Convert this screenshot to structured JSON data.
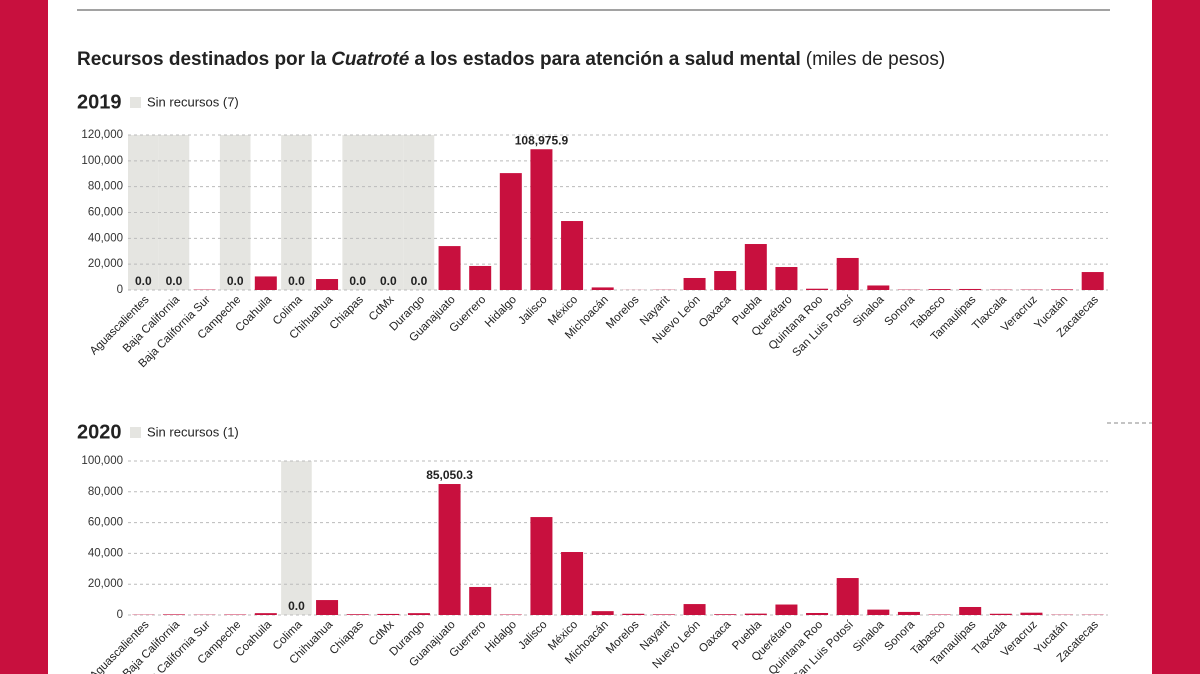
{
  "title": {
    "lead": "Recursos destinados por la",
    "emphasis": "Cuatroté",
    "tail": "a los estados para atención a salud mental",
    "unit": "(miles de pesos)"
  },
  "chart_data": [
    {
      "type": "bar",
      "title": "2019",
      "legend": "Sin recursos (7)",
      "categories": [
        "Aguascalientes",
        "Baja California",
        "Baja California Sur",
        "Campeche",
        "Coahuila",
        "Colima",
        "Chihuahua",
        "Chiapas",
        "CdMx",
        "Durango",
        "Guanajuato",
        "Guerrero",
        "Hidalgo",
        "Jalisco",
        "México",
        "Michoacán",
        "Morelos",
        "Nayarit",
        "Nuevo León",
        "Oaxaca",
        "Puebla",
        "Querétaro",
        "Quintana Roo",
        "San Luis Potosí",
        "Sinaloa",
        "Sonora",
        "Tabasco",
        "Tamaulipas",
        "Tlaxcala",
        "Veracruz",
        "Yucatán",
        "Zacatecas"
      ],
      "values": [
        0,
        0,
        300,
        0,
        10500,
        0,
        8500,
        0,
        0,
        0,
        34000,
        18600,
        90500,
        108975.9,
        53400,
        2000,
        100,
        200,
        9300,
        14700,
        35600,
        17800,
        1000,
        24800,
        3500,
        300,
        700,
        800,
        300,
        300,
        500,
        13900
      ],
      "value_labels": [
        "0.0",
        "0.0",
        null,
        "0.0",
        null,
        "0.0",
        null,
        "0.0",
        "0.0",
        "0.0",
        null,
        null,
        null,
        "108,975.9",
        null,
        null,
        null,
        null,
        null,
        null,
        null,
        null,
        null,
        null,
        null,
        null,
        null,
        null,
        null,
        null,
        null,
        null
      ],
      "no_resources": [
        true,
        true,
        false,
        true,
        false,
        true,
        false,
        true,
        true,
        true,
        false,
        false,
        false,
        false,
        false,
        false,
        false,
        false,
        false,
        false,
        false,
        false,
        false,
        false,
        false,
        false,
        false,
        false,
        false,
        false,
        false,
        false
      ],
      "color": "#c8103e",
      "shade_color": "#e5e5e1",
      "ylim": [
        0,
        120000
      ],
      "yticks": [
        0,
        {
          "value": 20000,
          "label": "20,000"
        },
        {
          "value": 40000,
          "label": "40,000"
        },
        {
          "value": 60000,
          "label": "60,000"
        },
        {
          "value": 80000,
          "label": "80,000"
        },
        {
          "value": 100000,
          "label": "100,000"
        },
        {
          "value": 120000,
          "label": "120,000"
        }
      ],
      "grid": true
    },
    {
      "type": "bar",
      "title": "2020",
      "legend": "Sin recursos (1)",
      "categories": [
        "Aguascalientes",
        "Baja California",
        "Baja California Sur",
        "Campeche",
        "Coahuila",
        "Colima",
        "Chihuahua",
        "Chiapas",
        "CdMx",
        "Durango",
        "Guanajuato",
        "Guerrero",
        "Hidalgo",
        "Jalisco",
        "México",
        "Michoacán",
        "Morelos",
        "Nayarit",
        "Nuevo León",
        "Oaxaca",
        "Puebla",
        "Querétaro",
        "Quintana Roo",
        "San Luis Potosí",
        "Sinaloa",
        "Sonora",
        "Tabasco",
        "Tamaulipas",
        "Tlaxcala",
        "Veracruz",
        "Yucatán",
        "Zacatecas"
      ],
      "values": [
        200,
        400,
        200,
        300,
        1200,
        0,
        9700,
        500,
        700,
        1200,
        85050.3,
        18200,
        300,
        63600,
        40900,
        2500,
        800,
        400,
        7100,
        500,
        900,
        6800,
        1300,
        24000,
        3500,
        2000,
        300,
        5200,
        800,
        1500,
        200,
        200
      ],
      "value_labels": [
        null,
        null,
        null,
        null,
        null,
        "0.0",
        null,
        null,
        null,
        null,
        "85,050.3",
        null,
        null,
        null,
        null,
        null,
        null,
        null,
        null,
        null,
        null,
        null,
        null,
        null,
        null,
        null,
        null,
        null,
        null,
        null,
        null,
        null
      ],
      "no_resources": [
        false,
        false,
        false,
        false,
        false,
        true,
        false,
        false,
        false,
        false,
        false,
        false,
        false,
        false,
        false,
        false,
        false,
        false,
        false,
        false,
        false,
        false,
        false,
        false,
        false,
        false,
        false,
        false,
        false,
        false,
        false,
        false
      ],
      "color": "#c8103e",
      "shade_color": "#e5e5e1",
      "ylim": [
        0,
        100000
      ],
      "yticks": [
        0,
        {
          "value": 20000,
          "label": "20,000"
        },
        {
          "value": 40000,
          "label": "40,000"
        },
        {
          "value": 60000,
          "label": "60,000"
        },
        {
          "value": 80000,
          "label": "80,000"
        },
        {
          "value": 100000,
          "label": "100,000"
        }
      ],
      "grid": true
    }
  ]
}
